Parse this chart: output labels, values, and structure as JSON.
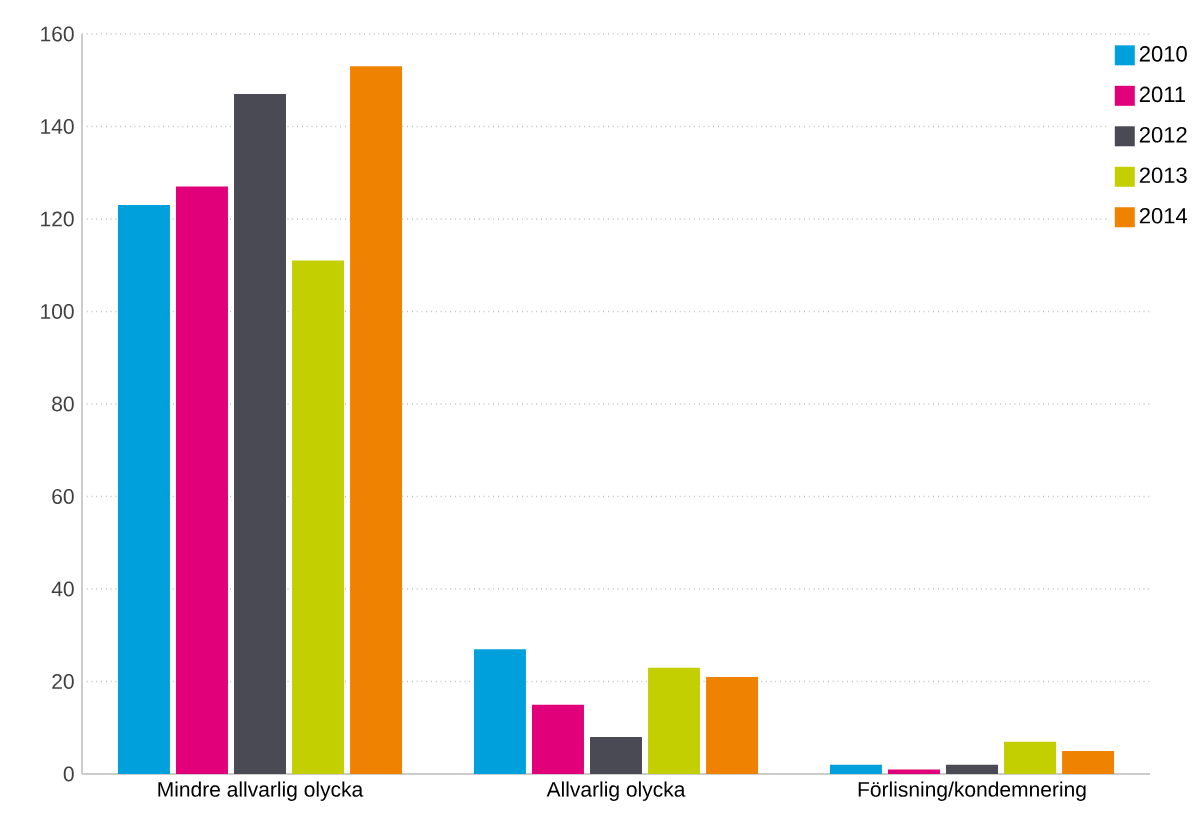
{
  "chart_data": {
    "type": "bar",
    "categories": [
      "Mindre allvarlig olycka",
      "Allvarlig olycka",
      "Förlisning/kondemnering"
    ],
    "series": [
      {
        "name": "2010",
        "color": "#00a0dc",
        "values": [
          123,
          27,
          2
        ]
      },
      {
        "name": "2011",
        "color": "#e2007a",
        "values": [
          127,
          15,
          1
        ]
      },
      {
        "name": "2012",
        "color": "#4a4a54",
        "values": [
          147,
          8,
          2
        ]
      },
      {
        "name": "2013",
        "color": "#c3cf00",
        "values": [
          111,
          23,
          7
        ]
      },
      {
        "name": "2014",
        "color": "#ef8200",
        "values": [
          153,
          21,
          5
        ]
      }
    ],
    "ylim": [
      0,
      160
    ],
    "yticks": [
      0,
      20,
      40,
      60,
      80,
      100,
      120,
      140,
      160
    ],
    "grid": "y",
    "legend": "top right"
  }
}
